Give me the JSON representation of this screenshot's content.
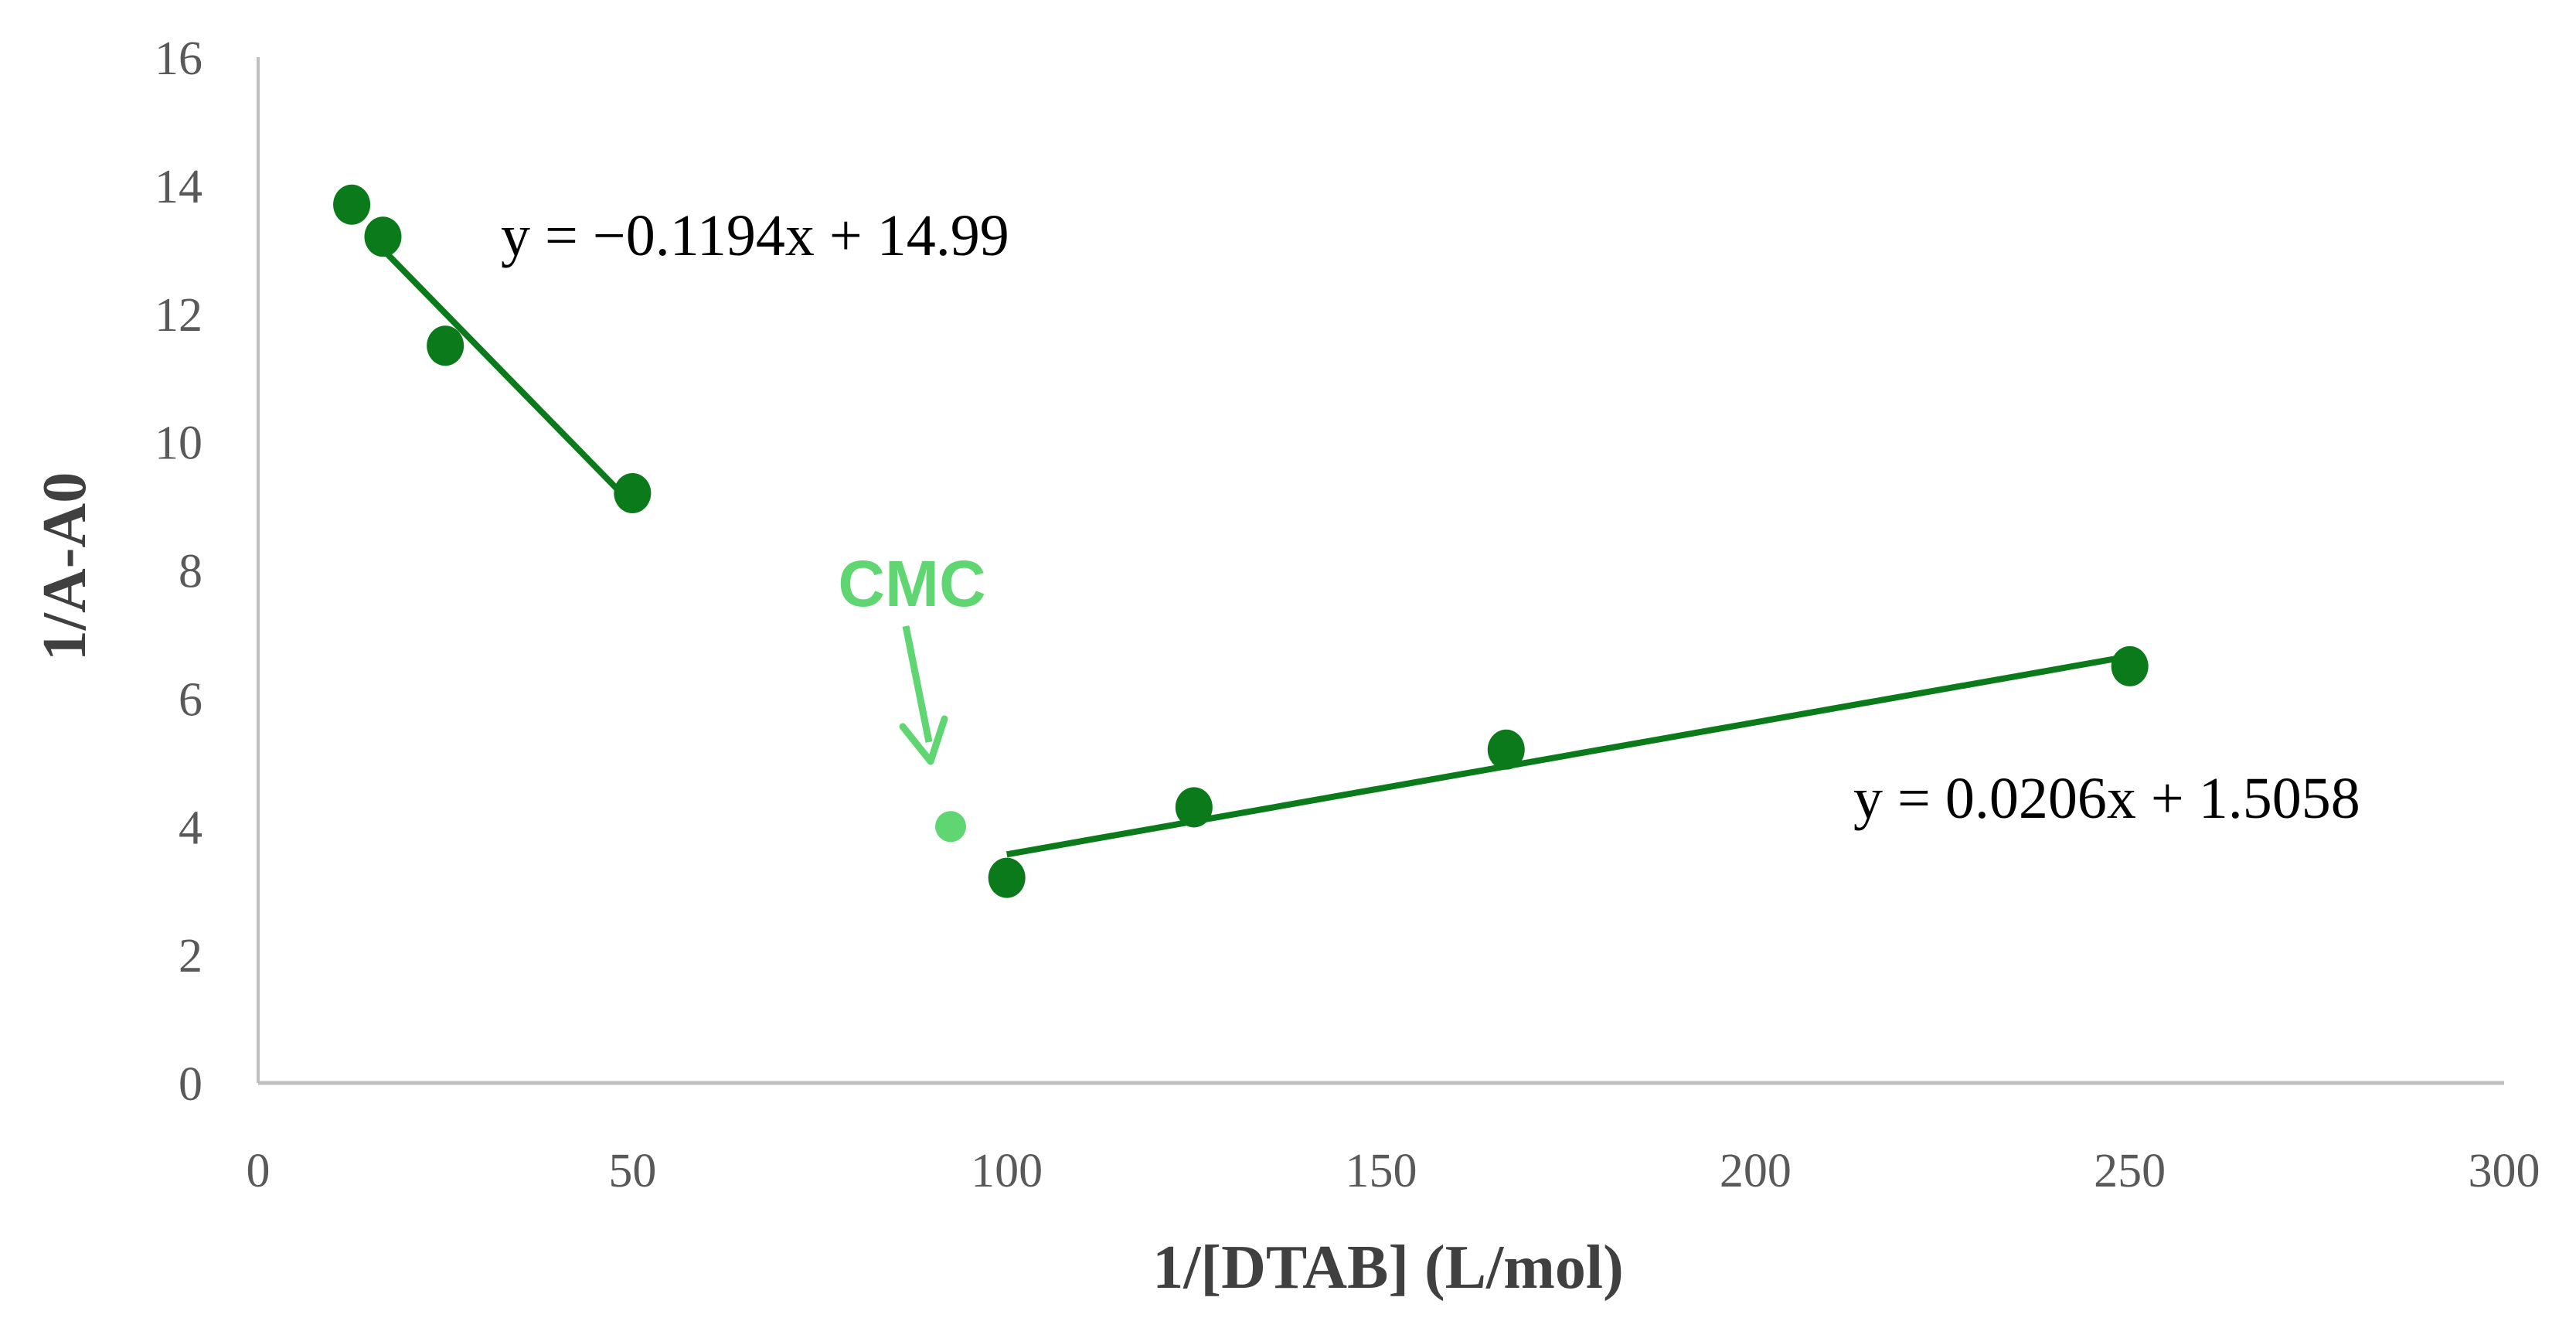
{
  "chart_data": {
    "type": "scatter",
    "xlabel": "1/[DTAB] (L/mol)",
    "ylabel": "1/A-A0",
    "xlim": [
      0,
      300
    ],
    "ylim": [
      0,
      16
    ],
    "xticks": [
      "0",
      "50",
      "100",
      "150",
      "200",
      "250",
      "300"
    ],
    "yticks": [
      "0",
      "2",
      "4",
      "6",
      "8",
      "10",
      "12",
      "14",
      "16"
    ],
    "grid": false,
    "series": [
      {
        "x": [
          12.5,
          16.67,
          25,
          50
        ],
        "y": [
          13.7,
          13.2,
          11.5,
          9.2
        ],
        "color": "#0a7a1a"
      },
      {
        "x": [
          100,
          125,
          166.7,
          250
        ],
        "y": [
          3.2,
          4.3,
          5.2,
          6.5
        ],
        "color": "#0a7a1a"
      }
    ],
    "trendlines": [
      {
        "slope": -0.1194,
        "intercept": 14.99,
        "x_range": [
          16.67,
          50
        ],
        "label": "y = −0.1194x + 14.99",
        "color": "#0a7a1a"
      },
      {
        "slope": 0.0206,
        "intercept": 1.5058,
        "x_range": [
          100,
          250
        ],
        "label": "y = 0.0206x + 1.5058",
        "color": "#0a7a1a"
      }
    ],
    "highlight_point": {
      "x": 92.5,
      "y": 4.0,
      "color": "#5fd672"
    },
    "annotation": {
      "text": "CMC",
      "color": "#5fd672"
    }
  }
}
